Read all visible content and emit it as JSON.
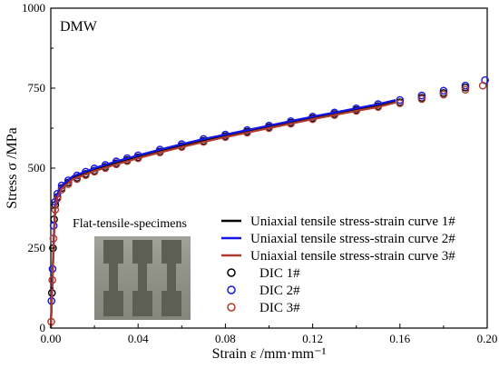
{
  "chart_data": {
    "type": "line",
    "title": "",
    "annotation": "DMW",
    "inset_label": "Flat-tensile-specimens",
    "xlabel": "Strain  ε /mm·mm⁻¹",
    "ylabel": "Stress  σ /MPa",
    "xlim": [
      0,
      0.2
    ],
    "ylim": [
      0,
      1000
    ],
    "xticks": [
      0.0,
      0.04,
      0.08,
      0.12,
      0.16,
      0.2
    ],
    "xtick_labels": [
      "0.00",
      "0.04",
      "0.08",
      "0.12",
      "0.16",
      "0.20"
    ],
    "yticks": [
      0,
      250,
      500,
      750,
      1000
    ],
    "ytick_labels": [
      "0",
      "250",
      "500",
      "750",
      "1000"
    ],
    "legend_position": "lower-right",
    "grid": false,
    "series": [
      {
        "name": "Uniaxial tensile stress-strain curve 1#",
        "kind": "line",
        "color": "#000000",
        "x": [
          0,
          0.0005,
          0.001,
          0.0015,
          0.002,
          0.0025,
          0.003,
          0.005,
          0.01,
          0.02,
          0.03,
          0.04,
          0.05,
          0.06,
          0.07,
          0.08,
          0.09,
          0.1,
          0.11,
          0.12,
          0.13,
          0.14,
          0.15,
          0.158
        ],
        "y": [
          0,
          100,
          200,
          300,
          370,
          400,
          412,
          440,
          468,
          494,
          515,
          534,
          552,
          569,
          585,
          600,
          614,
          628,
          642,
          656,
          669,
          682,
          694,
          708
        ]
      },
      {
        "name": "Uniaxial tensile stress-strain curve 2#",
        "kind": "line",
        "color": "#1515e6",
        "x": [
          0,
          0.0005,
          0.001,
          0.0015,
          0.002,
          0.0025,
          0.003,
          0.005,
          0.01,
          0.02,
          0.03,
          0.04,
          0.05,
          0.06,
          0.07,
          0.08,
          0.09,
          0.1,
          0.11,
          0.12,
          0.13,
          0.14,
          0.15,
          0.158
        ],
        "y": [
          0,
          105,
          210,
          310,
          380,
          410,
          420,
          446,
          474,
          500,
          521,
          540,
          558,
          575,
          591,
          605,
          619,
          633,
          647,
          661,
          674,
          687,
          700,
          713
        ]
      },
      {
        "name": "Uniaxial tensile stress-strain curve 3#",
        "kind": "line",
        "color": "#b03a2e",
        "x": [
          0,
          0.0005,
          0.001,
          0.0015,
          0.002,
          0.0025,
          0.003,
          0.005,
          0.01,
          0.02,
          0.03,
          0.04,
          0.05,
          0.06,
          0.07,
          0.08,
          0.09,
          0.1,
          0.11,
          0.12,
          0.13,
          0.14,
          0.15,
          0.158
        ],
        "y": [
          0,
          98,
          195,
          295,
          365,
          395,
          408,
          436,
          465,
          491,
          512,
          531,
          549,
          566,
          582,
          597,
          611,
          625,
          639,
          653,
          666,
          679,
          691,
          705
        ]
      },
      {
        "name": "DIC 1#",
        "kind": "scatter",
        "color": "#000000",
        "x": [
          0.0005,
          0.001,
          0.0015,
          0.002,
          0.003,
          0.005,
          0.008,
          0.012,
          0.016,
          0.02,
          0.025,
          0.03,
          0.035,
          0.04,
          0.05,
          0.06,
          0.07,
          0.08,
          0.09,
          0.1,
          0.11,
          0.12,
          0.13,
          0.14,
          0.15,
          0.16,
          0.17,
          0.18,
          0.19
        ],
        "y": [
          110,
          250,
          340,
          385,
          410,
          438,
          455,
          470,
          482,
          492,
          504,
          515,
          525,
          534,
          552,
          569,
          585,
          600,
          614,
          628,
          642,
          656,
          669,
          682,
          694,
          706,
          720,
          735,
          752
        ]
      },
      {
        "name": "DIC 2#",
        "kind": "scatter",
        "color": "#1515e6",
        "x": [
          0.0003,
          0.0008,
          0.0013,
          0.002,
          0.003,
          0.005,
          0.008,
          0.012,
          0.016,
          0.02,
          0.025,
          0.03,
          0.035,
          0.04,
          0.05,
          0.06,
          0.07,
          0.08,
          0.09,
          0.1,
          0.11,
          0.12,
          0.13,
          0.14,
          0.15,
          0.16,
          0.17,
          0.18,
          0.19,
          0.199
        ],
        "y": [
          85,
          185,
          320,
          395,
          420,
          446,
          462,
          477,
          489,
          499,
          510,
          521,
          531,
          540,
          558,
          575,
          591,
          605,
          619,
          633,
          647,
          661,
          674,
          687,
          700,
          713,
          727,
          742,
          758,
          775
        ]
      },
      {
        "name": "DIC 3#",
        "kind": "scatter",
        "color": "#b03a2e",
        "x": [
          0.0002,
          0.0007,
          0.0012,
          0.002,
          0.003,
          0.005,
          0.008,
          0.012,
          0.016,
          0.02,
          0.025,
          0.03,
          0.035,
          0.04,
          0.05,
          0.06,
          0.07,
          0.08,
          0.09,
          0.1,
          0.11,
          0.12,
          0.13,
          0.14,
          0.15,
          0.16,
          0.17,
          0.18,
          0.19,
          0.198
        ],
        "y": [
          20,
          150,
          280,
          370,
          405,
          433,
          450,
          466,
          478,
          489,
          500,
          512,
          522,
          531,
          549,
          566,
          582,
          597,
          611,
          625,
          639,
          653,
          666,
          679,
          691,
          703,
          716,
          730,
          745,
          758
        ]
      }
    ]
  }
}
